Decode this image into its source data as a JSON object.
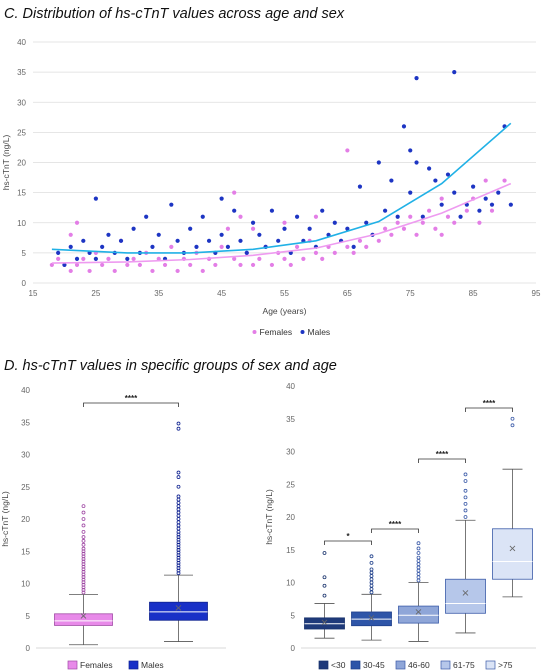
{
  "titles": {
    "c": "C. Distribution of hs-cTnT values across age and sex",
    "d": "D. hs-cTnT values in specific groups of sex and age"
  },
  "colors": {
    "females": "#e37ee6",
    "males": "#1d35c3",
    "female_trend": "#ee9bf0",
    "male_trend": "#21b1e6",
    "box_female": "#e88ae9",
    "box_male": "#1830c7",
    "age_groups": [
      "#1f3a7a",
      "#2e55a8",
      "#8fa6d8",
      "#b6c7ea",
      "#dbe4f6"
    ],
    "group_edge": "#3a5aa8"
  },
  "chart_data": [
    {
      "id": "C",
      "type": "scatter",
      "title": "C. Distribution of hs-cTnT values across age and sex",
      "xlabel": "Age (years)",
      "ylabel": "hs-cTnT (ng/L)",
      "xlim": [
        15,
        95
      ],
      "ylim": [
        0,
        40
      ],
      "xticks": [
        15,
        25,
        35,
        45,
        55,
        65,
        75,
        85,
        95
      ],
      "yticks": [
        0,
        5,
        10,
        15,
        20,
        25,
        30,
        35,
        40
      ],
      "grid": true,
      "legend": "bottom-center",
      "series": [
        {
          "name": "Females",
          "points": [
            [
              18,
              3
            ],
            [
              19,
              4
            ],
            [
              20,
              3
            ],
            [
              21,
              2
            ],
            [
              21,
              8
            ],
            [
              22,
              10
            ],
            [
              22,
              3
            ],
            [
              23,
              4
            ],
            [
              24,
              2
            ],
            [
              25,
              5
            ],
            [
              26,
              3
            ],
            [
              27,
              4
            ],
            [
              28,
              2
            ],
            [
              29,
              7
            ],
            [
              30,
              3
            ],
            [
              31,
              4
            ],
            [
              32,
              3
            ],
            [
              33,
              5
            ],
            [
              34,
              2
            ],
            [
              35,
              4
            ],
            [
              36,
              3
            ],
            [
              37,
              6
            ],
            [
              38,
              2
            ],
            [
              39,
              4
            ],
            [
              40,
              3
            ],
            [
              41,
              5
            ],
            [
              42,
              2
            ],
            [
              43,
              4
            ],
            [
              44,
              3
            ],
            [
              45,
              6
            ],
            [
              46,
              9
            ],
            [
              47,
              15
            ],
            [
              47,
              4
            ],
            [
              48,
              3
            ],
            [
              48,
              11
            ],
            [
              49,
              5
            ],
            [
              50,
              3
            ],
            [
              50,
              9
            ],
            [
              51,
              4
            ],
            [
              52,
              6
            ],
            [
              53,
              3
            ],
            [
              54,
              5
            ],
            [
              55,
              4
            ],
            [
              55,
              10
            ],
            [
              56,
              3
            ],
            [
              57,
              6
            ],
            [
              58,
              4
            ],
            [
              59,
              7
            ],
            [
              60,
              5
            ],
            [
              60,
              11
            ],
            [
              61,
              4
            ],
            [
              62,
              6
            ],
            [
              63,
              5
            ],
            [
              64,
              7
            ],
            [
              65,
              22
            ],
            [
              65,
              6
            ],
            [
              66,
              5
            ],
            [
              67,
              7
            ],
            [
              68,
              6
            ],
            [
              69,
              8
            ],
            [
              70,
              7
            ],
            [
              71,
              9
            ],
            [
              72,
              8
            ],
            [
              73,
              10
            ],
            [
              74,
              9
            ],
            [
              75,
              11
            ],
            [
              76,
              8
            ],
            [
              77,
              10
            ],
            [
              78,
              12
            ],
            [
              79,
              9
            ],
            [
              80,
              8
            ],
            [
              80,
              14
            ],
            [
              81,
              11
            ],
            [
              82,
              10
            ],
            [
              84,
              12
            ],
            [
              85,
              14
            ],
            [
              86,
              10
            ],
            [
              87,
              17
            ],
            [
              88,
              12
            ],
            [
              90,
              17
            ]
          ]
        },
        {
          "name": "Males",
          "points": [
            [
              19,
              5
            ],
            [
              20,
              3
            ],
            [
              21,
              6
            ],
            [
              22,
              4
            ],
            [
              23,
              7
            ],
            [
              24,
              5
            ],
            [
              25,
              14
            ],
            [
              25,
              4
            ],
            [
              26,
              6
            ],
            [
              27,
              8
            ],
            [
              28,
              5
            ],
            [
              29,
              7
            ],
            [
              30,
              4
            ],
            [
              31,
              9
            ],
            [
              32,
              5
            ],
            [
              33,
              11
            ],
            [
              34,
              6
            ],
            [
              35,
              8
            ],
            [
              36,
              4
            ],
            [
              37,
              13
            ],
            [
              38,
              7
            ],
            [
              39,
              5
            ],
            [
              40,
              9
            ],
            [
              41,
              6
            ],
            [
              42,
              11
            ],
            [
              43,
              7
            ],
            [
              44,
              5
            ],
            [
              45,
              14
            ],
            [
              45,
              8
            ],
            [
              46,
              6
            ],
            [
              47,
              12
            ],
            [
              48,
              7
            ],
            [
              49,
              5
            ],
            [
              50,
              10
            ],
            [
              51,
              8
            ],
            [
              52,
              6
            ],
            [
              53,
              12
            ],
            [
              54,
              7
            ],
            [
              55,
              9
            ],
            [
              56,
              5
            ],
            [
              57,
              11
            ],
            [
              58,
              7
            ],
            [
              59,
              9
            ],
            [
              60,
              6
            ],
            [
              61,
              12
            ],
            [
              62,
              8
            ],
            [
              63,
              10
            ],
            [
              64,
              7
            ],
            [
              65,
              9
            ],
            [
              66,
              6
            ],
            [
              67,
              16
            ],
            [
              68,
              10
            ],
            [
              69,
              8
            ],
            [
              70,
              20
            ],
            [
              71,
              12
            ],
            [
              72,
              17
            ],
            [
              73,
              11
            ],
            [
              74,
              26
            ],
            [
              75,
              15
            ],
            [
              75,
              22
            ],
            [
              76,
              34
            ],
            [
              76,
              20
            ],
            [
              77,
              11
            ],
            [
              78,
              19
            ],
            [
              79,
              17
            ],
            [
              80,
              13
            ],
            [
              81,
              18
            ],
            [
              82,
              35
            ],
            [
              82,
              15
            ],
            [
              83,
              11
            ],
            [
              84,
              13
            ],
            [
              85,
              16
            ],
            [
              86,
              12
            ],
            [
              87,
              14
            ],
            [
              88,
              13
            ],
            [
              89,
              15
            ],
            [
              90,
              26
            ],
            [
              91,
              13
            ]
          ]
        }
      ],
      "trend_lines": [
        {
          "name": "Females",
          "points": [
            [
              18,
              3.3
            ],
            [
              30,
              3.5
            ],
            [
              40,
              3.9
            ],
            [
              50,
              4.6
            ],
            [
              60,
              5.8
            ],
            [
              70,
              8.2
            ],
            [
              80,
              11.6
            ],
            [
              91,
              16.5
            ]
          ]
        },
        {
          "name": "Males",
          "points": [
            [
              18,
              5.6
            ],
            [
              30,
              5.0
            ],
            [
              40,
              5.0
            ],
            [
              50,
              5.6
            ],
            [
              60,
              7.0
            ],
            [
              70,
              10.2
            ],
            [
              80,
              16.5
            ],
            [
              91,
              26.5
            ]
          ]
        }
      ]
    },
    {
      "id": "D-left",
      "type": "box",
      "title": "D. hs-cTnT values in specific groups of sex and age",
      "ylabel": "hs-cTnT (ng/L)",
      "ylim": [
        0,
        40
      ],
      "yticks": [
        0,
        5,
        10,
        15,
        20,
        25,
        30,
        35,
        40
      ],
      "legend": "bottom",
      "groups": [
        {
          "name": "Females",
          "whisker_low": 0.5,
          "q1": 3.5,
          "median": 4.2,
          "q3": 5.3,
          "whisker_high": 8.3,
          "mean": 5.0,
          "outliers": [
            8.6,
            9.0,
            9.4,
            9.8,
            10.2,
            10.6,
            11.0,
            11.4,
            11.8,
            12.2,
            12.6,
            13.0,
            13.4,
            13.8,
            14.2,
            14.6,
            15.0,
            15.4,
            16.0,
            16.6,
            17.2,
            18.0,
            19.0,
            20.0,
            21.0,
            22.0
          ]
        },
        {
          "name": "Males",
          "whisker_low": 1.0,
          "q1": 4.3,
          "median": 5.6,
          "q3": 7.1,
          "whisker_high": 11.3,
          "mean": 6.2,
          "outliers": [
            11.6,
            12.0,
            12.4,
            12.8,
            13.2,
            13.6,
            14.0,
            14.4,
            14.8,
            15.2,
            15.6,
            16.0,
            16.4,
            16.8,
            17.2,
            17.6,
            18.0,
            18.5,
            19.0,
            19.5,
            20.0,
            20.5,
            21.0,
            21.5,
            22.0,
            22.5,
            23.0,
            23.5,
            25.0,
            26.5,
            27.2,
            34.0,
            34.8
          ]
        }
      ],
      "significance": [
        {
          "from": 0,
          "to": 1,
          "label": "****"
        }
      ]
    },
    {
      "id": "D-right",
      "type": "box",
      "ylabel": "hs-cTnT (ng/L)",
      "ylim": [
        0,
        40
      ],
      "yticks": [
        0,
        5,
        10,
        15,
        20,
        25,
        30,
        35,
        40
      ],
      "legend": "bottom",
      "groups": [
        {
          "name": "<30",
          "whisker_low": 1.5,
          "q1": 2.9,
          "median": 3.7,
          "q3": 4.6,
          "whisker_high": 6.8,
          "mean": 3.9,
          "outliers": [
            8.0,
            9.5,
            10.8,
            14.5
          ]
        },
        {
          "name": "30-45",
          "whisker_low": 1.2,
          "q1": 3.4,
          "median": 4.4,
          "q3": 5.5,
          "whisker_high": 8.2,
          "mean": 4.6,
          "outliers": [
            8.5,
            9.0,
            9.5,
            10.0,
            10.5,
            11.0,
            11.5,
            12.0,
            13.0,
            14.0
          ]
        },
        {
          "name": "46-60",
          "whisker_low": 1.0,
          "q1": 3.8,
          "median": 5.0,
          "q3": 6.4,
          "whisker_high": 10.0,
          "mean": 5.5,
          "outliers": [
            10.3,
            10.8,
            11.3,
            11.8,
            12.3,
            12.8,
            13.3,
            13.8,
            14.5,
            15.2,
            16.0
          ]
        },
        {
          "name": "61-75",
          "whisker_low": 2.3,
          "q1": 5.3,
          "median": 6.8,
          "q3": 10.5,
          "whisker_high": 19.5,
          "mean": 8.4,
          "outliers": [
            20.0,
            21.0,
            22.0,
            23.0,
            24.0,
            25.5,
            26.5
          ]
        },
        {
          "name": ">75",
          "whisker_low": 7.8,
          "q1": 10.5,
          "median": 13.2,
          "q3": 18.2,
          "whisker_high": 27.3,
          "mean": 15.2,
          "outliers": [
            34.0,
            35.0
          ]
        }
      ],
      "significance": [
        {
          "from": 0,
          "to": 1,
          "label": "*"
        },
        {
          "from": 1,
          "to": 2,
          "label": "****"
        },
        {
          "from": 2,
          "to": 3,
          "label": "****"
        },
        {
          "from": 3,
          "to": 4,
          "label": "****"
        }
      ]
    }
  ]
}
